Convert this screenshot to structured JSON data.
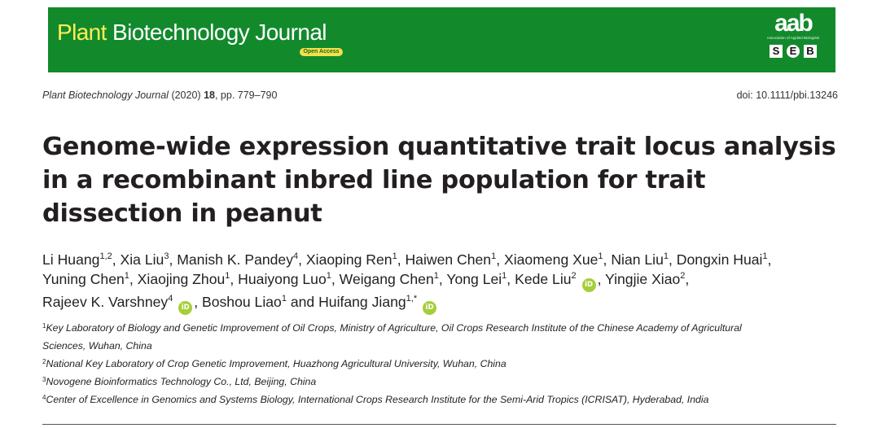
{
  "banner": {
    "journal_word1": "Plant",
    "journal_rest": " Biotechnology Journal",
    "open_access": "Open Access",
    "aab_logo": "aab",
    "aab_subtitle": "Association of Applied Biologists",
    "seb_letters": [
      "S",
      "E",
      "B"
    ],
    "colors": {
      "background": "#128a2c",
      "plant_word": "#ffee55",
      "badge": "#f4e04a"
    }
  },
  "citation": {
    "journal": "Plant Biotechnology Journal",
    "year": " (2020) ",
    "volume": "18",
    "pages": ", pp. 779–790",
    "doi": "doi: 10.1111/pbi.13246"
  },
  "title_lines": [
    "Genome-wide expression quantitative trait locus analysis",
    "in a recombinant inbred line population for trait",
    "dissection in peanut"
  ],
  "authors": {
    "line1": [
      {
        "name": "Li Huang",
        "sup": "1,2",
        "sep": ", "
      },
      {
        "name": "Xia Liu",
        "sup": "3",
        "sep": ", "
      },
      {
        "name": "Manish K. Pandey",
        "sup": "4",
        "sep": ", "
      },
      {
        "name": "Xiaoping Ren",
        "sup": "1",
        "sep": ", "
      },
      {
        "name": "Haiwen Chen",
        "sup": "1",
        "sep": ", "
      },
      {
        "name": "Xiaomeng Xue",
        "sup": "1",
        "sep": ", "
      },
      {
        "name": "Nian Liu",
        "sup": "1",
        "sep": ", "
      },
      {
        "name": "Dongxin Huai",
        "sup": "1",
        "sep": ","
      }
    ],
    "line2": [
      {
        "name": "Yuning Chen",
        "sup": "1",
        "sep": ", "
      },
      {
        "name": "Xiaojing Zhou",
        "sup": "1",
        "sep": ", "
      },
      {
        "name": "Huaiyong Luo",
        "sup": "1",
        "sep": ", "
      },
      {
        "name": "Weigang Chen",
        "sup": "1",
        "sep": ", "
      },
      {
        "name": "Yong Lei",
        "sup": "1",
        "sep": ", "
      },
      {
        "name": "Kede Liu",
        "sup": "2",
        "sep": "",
        "orcid": true
      },
      {
        "name": ", Yingjie Xiao",
        "sup": "2",
        "sep": ","
      }
    ],
    "line3": [
      {
        "name": "Rajeev K. Varshney",
        "sup": "4",
        "sep": "",
        "orcid": true
      },
      {
        "name": ", Boshou Liao",
        "sup": "1",
        "sep": " and "
      },
      {
        "name": "Huifang Jiang",
        "sup": "1,",
        "sep": "",
        "star": "*",
        "orcid": true
      }
    ],
    "orcid_label": "iD"
  },
  "affiliations": [
    {
      "num": "1",
      "text": "Key Laboratory of Biology and Genetic Improvement of Oil Crops, Ministry of Agriculture, Oil Crops Research Institute of the Chinese Academy of Agricultural"
    },
    {
      "num": "",
      "text": "Sciences, Wuhan, China"
    },
    {
      "num": "2",
      "text": "National Key Laboratory of Crop Genetic Improvement, Huazhong Agricultural University, Wuhan, China"
    },
    {
      "num": "3",
      "text": "Novogene Bioinformatics Technology Co., Ltd, Beijing, China"
    },
    {
      "num": "4",
      "text": "Center of Excellence in Genomics and Systems Biology, International Crops Research Institute for the Semi-Arid Tropics (ICRISAT), Hyderabad, India"
    }
  ]
}
